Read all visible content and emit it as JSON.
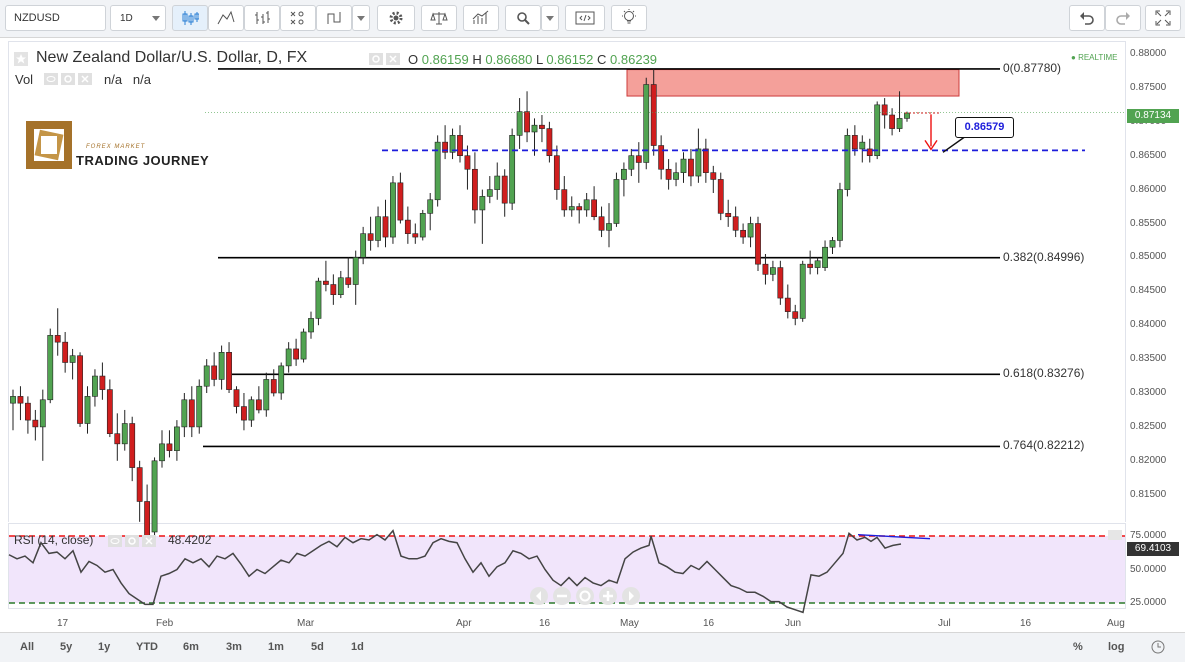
{
  "toolbar": {
    "symbol": "NZDUSD",
    "interval": "1D"
  },
  "legend": {
    "title": "New Zealand Dollar/U.S. Dollar, D, FX",
    "o_label": "O",
    "o_value": "0.86159",
    "h_label": "H",
    "h_value": "0.86680",
    "l_label": "L",
    "l_value": "0.86152",
    "c_label": "C",
    "c_value": "0.86239",
    "vol_label": "Vol",
    "vol_value1": "n/a",
    "vol_value2": "n/a",
    "realtime": "REALTIME"
  },
  "watermark": {
    "line1": "FOREX MARKET",
    "line2": "TRADING JOURNEY"
  },
  "annotation": {
    "level_label": "0.86579"
  },
  "rsi": {
    "label": "RSI (14, close)",
    "value": "48.4202",
    "current_badge": "69.4103",
    "ticks": [
      "75.0000",
      "50.0000",
      "25.0000"
    ]
  },
  "current_price": "0.87134",
  "bottom_bar": {
    "ranges": [
      "All",
      "5y",
      "1y",
      "YTD",
      "6m",
      "3m",
      "1m",
      "5d",
      "1d"
    ],
    "percent": "%",
    "log": "log"
  },
  "colors": {
    "up": "#51a351",
    "down": "#d01e1e",
    "fib": "#000000",
    "dashed_level": "#1d1ddb",
    "resistance_zone": "#f4a09a",
    "rsi_band": "#f1e5fb",
    "rsi_line": "#444444"
  },
  "chart_data": {
    "type": "candlestick",
    "title": "New Zealand Dollar/U.S. Dollar, D, FX",
    "ylim": [
      0.8075,
      0.882
    ],
    "y_ticks": [
      "0.88000",
      "0.87500",
      "0.87000",
      "0.86500",
      "0.86000",
      "0.85500",
      "0.85000",
      "0.84500",
      "0.84000",
      "0.83500",
      "0.83000",
      "0.82500",
      "0.82000",
      "0.81500"
    ],
    "x_ticks": [
      "17",
      "Feb",
      "Mar",
      "Apr",
      "16",
      "May",
      "16",
      "Jun",
      "Jul",
      "16",
      "Aug"
    ],
    "fib_levels": [
      {
        "label": "0(0.87780)",
        "value": 0.8778
      },
      {
        "label": "0.382(0.84996)",
        "value": 0.84996
      },
      {
        "label": "0.618(0.83276)",
        "value": 0.83276
      },
      {
        "label": "0.764(0.82212)",
        "value": 0.82212
      }
    ],
    "support_level": 0.86579,
    "resistance_zone": [
      0.8738,
      0.8777
    ],
    "candles": [
      {
        "o": 0.8285,
        "h": 0.8305,
        "l": 0.8245,
        "c": 0.8295
      },
      {
        "o": 0.8295,
        "h": 0.831,
        "l": 0.826,
        "c": 0.8285
      },
      {
        "o": 0.8285,
        "h": 0.8295,
        "l": 0.824,
        "c": 0.826
      },
      {
        "o": 0.826,
        "h": 0.8275,
        "l": 0.823,
        "c": 0.825
      },
      {
        "o": 0.825,
        "h": 0.8305,
        "l": 0.82,
        "c": 0.829
      },
      {
        "o": 0.829,
        "h": 0.8395,
        "l": 0.8285,
        "c": 0.8385
      },
      {
        "o": 0.8385,
        "h": 0.8425,
        "l": 0.8355,
        "c": 0.8375
      },
      {
        "o": 0.8375,
        "h": 0.839,
        "l": 0.833,
        "c": 0.8345
      },
      {
        "o": 0.8345,
        "h": 0.8365,
        "l": 0.832,
        "c": 0.8355
      },
      {
        "o": 0.8355,
        "h": 0.836,
        "l": 0.825,
        "c": 0.8255
      },
      {
        "o": 0.8255,
        "h": 0.831,
        "l": 0.824,
        "c": 0.8295
      },
      {
        "o": 0.8295,
        "h": 0.8335,
        "l": 0.828,
        "c": 0.8325
      },
      {
        "o": 0.8325,
        "h": 0.8345,
        "l": 0.829,
        "c": 0.8305
      },
      {
        "o": 0.8305,
        "h": 0.832,
        "l": 0.8235,
        "c": 0.824
      },
      {
        "o": 0.824,
        "h": 0.827,
        "l": 0.82,
        "c": 0.8225
      },
      {
        "o": 0.8225,
        "h": 0.8275,
        "l": 0.8215,
        "c": 0.8255
      },
      {
        "o": 0.8255,
        "h": 0.8265,
        "l": 0.817,
        "c": 0.819
      },
      {
        "o": 0.819,
        "h": 0.82,
        "l": 0.811,
        "c": 0.814
      },
      {
        "o": 0.814,
        "h": 0.8165,
        "l": 0.807,
        "c": 0.809
      },
      {
        "o": 0.8095,
        "h": 0.8205,
        "l": 0.8085,
        "c": 0.82
      },
      {
        "o": 0.82,
        "h": 0.8245,
        "l": 0.819,
        "c": 0.8225
      },
      {
        "o": 0.8225,
        "h": 0.8245,
        "l": 0.8205,
        "c": 0.8215
      },
      {
        "o": 0.8215,
        "h": 0.826,
        "l": 0.82,
        "c": 0.825
      },
      {
        "o": 0.825,
        "h": 0.83,
        "l": 0.8235,
        "c": 0.829
      },
      {
        "o": 0.829,
        "h": 0.831,
        "l": 0.8235,
        "c": 0.825
      },
      {
        "o": 0.825,
        "h": 0.832,
        "l": 0.824,
        "c": 0.831
      },
      {
        "o": 0.831,
        "h": 0.835,
        "l": 0.83,
        "c": 0.834
      },
      {
        "o": 0.834,
        "h": 0.836,
        "l": 0.831,
        "c": 0.832
      },
      {
        "o": 0.832,
        "h": 0.837,
        "l": 0.8305,
        "c": 0.836
      },
      {
        "o": 0.836,
        "h": 0.8375,
        "l": 0.83,
        "c": 0.8305
      },
      {
        "o": 0.8305,
        "h": 0.831,
        "l": 0.827,
        "c": 0.828
      },
      {
        "o": 0.828,
        "h": 0.83,
        "l": 0.8245,
        "c": 0.826
      },
      {
        "o": 0.826,
        "h": 0.8295,
        "l": 0.825,
        "c": 0.829
      },
      {
        "o": 0.829,
        "h": 0.831,
        "l": 0.827,
        "c": 0.8275
      },
      {
        "o": 0.8275,
        "h": 0.833,
        "l": 0.8265,
        "c": 0.832
      },
      {
        "o": 0.832,
        "h": 0.8335,
        "l": 0.8295,
        "c": 0.83
      },
      {
        "o": 0.83,
        "h": 0.8345,
        "l": 0.829,
        "c": 0.834
      },
      {
        "o": 0.834,
        "h": 0.8375,
        "l": 0.833,
        "c": 0.8365
      },
      {
        "o": 0.8365,
        "h": 0.838,
        "l": 0.834,
        "c": 0.835
      },
      {
        "o": 0.835,
        "h": 0.8395,
        "l": 0.8345,
        "c": 0.839
      },
      {
        "o": 0.839,
        "h": 0.842,
        "l": 0.838,
        "c": 0.841
      },
      {
        "o": 0.841,
        "h": 0.847,
        "l": 0.84,
        "c": 0.8465
      },
      {
        "o": 0.8465,
        "h": 0.8495,
        "l": 0.845,
        "c": 0.846
      },
      {
        "o": 0.846,
        "h": 0.8475,
        "l": 0.843,
        "c": 0.8445
      },
      {
        "o": 0.8445,
        "h": 0.848,
        "l": 0.844,
        "c": 0.847
      },
      {
        "o": 0.847,
        "h": 0.85,
        "l": 0.8455,
        "c": 0.846
      },
      {
        "o": 0.846,
        "h": 0.851,
        "l": 0.843,
        "c": 0.85
      },
      {
        "o": 0.85,
        "h": 0.8545,
        "l": 0.849,
        "c": 0.8535
      },
      {
        "o": 0.8535,
        "h": 0.856,
        "l": 0.851,
        "c": 0.8525
      },
      {
        "o": 0.8525,
        "h": 0.8575,
        "l": 0.8515,
        "c": 0.856
      },
      {
        "o": 0.856,
        "h": 0.8585,
        "l": 0.8515,
        "c": 0.853
      },
      {
        "o": 0.853,
        "h": 0.862,
        "l": 0.852,
        "c": 0.861
      },
      {
        "o": 0.861,
        "h": 0.8625,
        "l": 0.855,
        "c": 0.8555
      },
      {
        "o": 0.8555,
        "h": 0.8575,
        "l": 0.852,
        "c": 0.8535
      },
      {
        "o": 0.8535,
        "h": 0.855,
        "l": 0.852,
        "c": 0.853
      },
      {
        "o": 0.853,
        "h": 0.857,
        "l": 0.8525,
        "c": 0.8565
      },
      {
        "o": 0.8565,
        "h": 0.8595,
        "l": 0.854,
        "c": 0.8585
      },
      {
        "o": 0.8585,
        "h": 0.868,
        "l": 0.8575,
        "c": 0.867
      },
      {
        "o": 0.867,
        "h": 0.8695,
        "l": 0.8645,
        "c": 0.8655
      },
      {
        "o": 0.8655,
        "h": 0.869,
        "l": 0.8645,
        "c": 0.868
      },
      {
        "o": 0.868,
        "h": 0.8695,
        "l": 0.864,
        "c": 0.865
      },
      {
        "o": 0.865,
        "h": 0.8665,
        "l": 0.86,
        "c": 0.863
      },
      {
        "o": 0.863,
        "h": 0.8655,
        "l": 0.855,
        "c": 0.857
      },
      {
        "o": 0.857,
        "h": 0.86,
        "l": 0.852,
        "c": 0.859
      },
      {
        "o": 0.859,
        "h": 0.862,
        "l": 0.858,
        "c": 0.86
      },
      {
        "o": 0.86,
        "h": 0.864,
        "l": 0.8585,
        "c": 0.862
      },
      {
        "o": 0.862,
        "h": 0.863,
        "l": 0.856,
        "c": 0.858
      },
      {
        "o": 0.858,
        "h": 0.869,
        "l": 0.857,
        "c": 0.868
      },
      {
        "o": 0.868,
        "h": 0.8735,
        "l": 0.866,
        "c": 0.8715
      },
      {
        "o": 0.8715,
        "h": 0.8745,
        "l": 0.867,
        "c": 0.8685
      },
      {
        "o": 0.8685,
        "h": 0.8705,
        "l": 0.865,
        "c": 0.8695
      },
      {
        "o": 0.8695,
        "h": 0.871,
        "l": 0.867,
        "c": 0.869
      },
      {
        "o": 0.869,
        "h": 0.87,
        "l": 0.864,
        "c": 0.865
      },
      {
        "o": 0.865,
        "h": 0.8665,
        "l": 0.8585,
        "c": 0.86
      },
      {
        "o": 0.86,
        "h": 0.862,
        "l": 0.856,
        "c": 0.857
      },
      {
        "o": 0.857,
        "h": 0.859,
        "l": 0.856,
        "c": 0.8575
      },
      {
        "o": 0.8575,
        "h": 0.858,
        "l": 0.855,
        "c": 0.857
      },
      {
        "o": 0.857,
        "h": 0.8595,
        "l": 0.856,
        "c": 0.8585
      },
      {
        "o": 0.8585,
        "h": 0.8605,
        "l": 0.8555,
        "c": 0.856
      },
      {
        "o": 0.856,
        "h": 0.8575,
        "l": 0.853,
        "c": 0.854
      },
      {
        "o": 0.854,
        "h": 0.858,
        "l": 0.8515,
        "c": 0.855
      },
      {
        "o": 0.855,
        "h": 0.8625,
        "l": 0.8545,
        "c": 0.8615
      },
      {
        "o": 0.8615,
        "h": 0.864,
        "l": 0.859,
        "c": 0.863
      },
      {
        "o": 0.863,
        "h": 0.866,
        "l": 0.862,
        "c": 0.865
      },
      {
        "o": 0.865,
        "h": 0.867,
        "l": 0.861,
        "c": 0.864
      },
      {
        "o": 0.864,
        "h": 0.8765,
        "l": 0.863,
        "c": 0.8755
      },
      {
        "o": 0.8755,
        "h": 0.8778,
        "l": 0.865,
        "c": 0.8665
      },
      {
        "o": 0.8665,
        "h": 0.868,
        "l": 0.8615,
        "c": 0.863
      },
      {
        "o": 0.863,
        "h": 0.8645,
        "l": 0.86,
        "c": 0.8615
      },
      {
        "o": 0.8615,
        "h": 0.864,
        "l": 0.8605,
        "c": 0.8625
      },
      {
        "o": 0.8625,
        "h": 0.8655,
        "l": 0.861,
        "c": 0.8645
      },
      {
        "o": 0.8645,
        "h": 0.866,
        "l": 0.8605,
        "c": 0.862
      },
      {
        "o": 0.862,
        "h": 0.869,
        "l": 0.861,
        "c": 0.866
      },
      {
        "o": 0.866,
        "h": 0.8675,
        "l": 0.861,
        "c": 0.8625
      },
      {
        "o": 0.8625,
        "h": 0.8635,
        "l": 0.8595,
        "c": 0.8615
      },
      {
        "o": 0.8615,
        "h": 0.8625,
        "l": 0.8555,
        "c": 0.8565
      },
      {
        "o": 0.8565,
        "h": 0.8585,
        "l": 0.8545,
        "c": 0.856
      },
      {
        "o": 0.856,
        "h": 0.8575,
        "l": 0.853,
        "c": 0.854
      },
      {
        "o": 0.854,
        "h": 0.855,
        "l": 0.852,
        "c": 0.853
      },
      {
        "o": 0.853,
        "h": 0.856,
        "l": 0.8515,
        "c": 0.855
      },
      {
        "o": 0.855,
        "h": 0.856,
        "l": 0.848,
        "c": 0.849
      },
      {
        "o": 0.849,
        "h": 0.8505,
        "l": 0.846,
        "c": 0.8475
      },
      {
        "o": 0.8475,
        "h": 0.8495,
        "l": 0.8465,
        "c": 0.8485
      },
      {
        "o": 0.8485,
        "h": 0.8495,
        "l": 0.843,
        "c": 0.844
      },
      {
        "o": 0.844,
        "h": 0.846,
        "l": 0.841,
        "c": 0.842
      },
      {
        "o": 0.842,
        "h": 0.843,
        "l": 0.84,
        "c": 0.841
      },
      {
        "o": 0.841,
        "h": 0.8495,
        "l": 0.8405,
        "c": 0.849
      },
      {
        "o": 0.849,
        "h": 0.851,
        "l": 0.8475,
        "c": 0.8485
      },
      {
        "o": 0.8485,
        "h": 0.85,
        "l": 0.8475,
        "c": 0.8495
      },
      {
        "o": 0.8485,
        "h": 0.8525,
        "l": 0.848,
        "c": 0.8515
      },
      {
        "o": 0.8515,
        "h": 0.853,
        "l": 0.8505,
        "c": 0.8525
      },
      {
        "o": 0.8525,
        "h": 0.861,
        "l": 0.8515,
        "c": 0.86
      },
      {
        "o": 0.86,
        "h": 0.869,
        "l": 0.859,
        "c": 0.868
      },
      {
        "o": 0.868,
        "h": 0.8695,
        "l": 0.865,
        "c": 0.866
      },
      {
        "o": 0.866,
        "h": 0.868,
        "l": 0.864,
        "c": 0.867
      },
      {
        "o": 0.866,
        "h": 0.8675,
        "l": 0.864,
        "c": 0.865
      },
      {
        "o": 0.865,
        "h": 0.873,
        "l": 0.8645,
        "c": 0.8725
      },
      {
        "o": 0.8725,
        "h": 0.8735,
        "l": 0.869,
        "c": 0.871
      },
      {
        "o": 0.871,
        "h": 0.872,
        "l": 0.868,
        "c": 0.869
      },
      {
        "o": 0.869,
        "h": 0.8745,
        "l": 0.8685,
        "c": 0.8705
      },
      {
        "o": 0.8705,
        "h": 0.8715,
        "l": 0.87,
        "c": 0.8713
      }
    ],
    "rsi": [
      {
        "x": 0,
        "v": 61
      },
      {
        "x": 8,
        "v": 58
      },
      {
        "x": 16,
        "v": 60
      },
      {
        "x": 24,
        "v": 55
      },
      {
        "x": 32,
        "v": 70
      },
      {
        "x": 40,
        "v": 62
      },
      {
        "x": 48,
        "v": 63
      },
      {
        "x": 56,
        "v": 58
      },
      {
        "x": 64,
        "v": 64
      },
      {
        "x": 72,
        "v": 48
      },
      {
        "x": 80,
        "v": 56
      },
      {
        "x": 88,
        "v": 53
      },
      {
        "x": 96,
        "v": 48
      },
      {
        "x": 104,
        "v": 50
      },
      {
        "x": 112,
        "v": 40
      },
      {
        "x": 120,
        "v": 32
      },
      {
        "x": 128,
        "v": 28
      },
      {
        "x": 136,
        "v": 24
      },
      {
        "x": 144,
        "v": 24
      },
      {
        "x": 152,
        "v": 45
      },
      {
        "x": 160,
        "v": 47
      },
      {
        "x": 168,
        "v": 50
      },
      {
        "x": 176,
        "v": 58
      },
      {
        "x": 184,
        "v": 55
      },
      {
        "x": 192,
        "v": 58
      },
      {
        "x": 200,
        "v": 52
      },
      {
        "x": 208,
        "v": 60
      },
      {
        "x": 216,
        "v": 58
      },
      {
        "x": 224,
        "v": 62
      },
      {
        "x": 232,
        "v": 54
      },
      {
        "x": 240,
        "v": 45
      },
      {
        "x": 248,
        "v": 50
      },
      {
        "x": 256,
        "v": 47
      },
      {
        "x": 264,
        "v": 52
      },
      {
        "x": 272,
        "v": 57
      },
      {
        "x": 280,
        "v": 55
      },
      {
        "x": 288,
        "v": 62
      },
      {
        "x": 296,
        "v": 60
      },
      {
        "x": 304,
        "v": 64
      },
      {
        "x": 312,
        "v": 68
      },
      {
        "x": 320,
        "v": 71
      },
      {
        "x": 328,
        "v": 67
      },
      {
        "x": 336,
        "v": 74
      },
      {
        "x": 344,
        "v": 70
      },
      {
        "x": 352,
        "v": 73
      },
      {
        "x": 360,
        "v": 72
      },
      {
        "x": 368,
        "v": 76
      },
      {
        "x": 376,
        "v": 72
      },
      {
        "x": 384,
        "v": 79
      },
      {
        "x": 392,
        "v": 60
      },
      {
        "x": 400,
        "v": 58
      },
      {
        "x": 408,
        "v": 58
      },
      {
        "x": 416,
        "v": 60
      },
      {
        "x": 424,
        "v": 70
      },
      {
        "x": 432,
        "v": 73
      },
      {
        "x": 440,
        "v": 71
      },
      {
        "x": 448,
        "v": 70
      },
      {
        "x": 456,
        "v": 58
      },
      {
        "x": 464,
        "v": 48
      },
      {
        "x": 472,
        "v": 55
      },
      {
        "x": 480,
        "v": 45
      },
      {
        "x": 488,
        "v": 52
      },
      {
        "x": 496,
        "v": 55
      },
      {
        "x": 504,
        "v": 64
      },
      {
        "x": 512,
        "v": 62
      },
      {
        "x": 520,
        "v": 58
      },
      {
        "x": 528,
        "v": 60
      },
      {
        "x": 536,
        "v": 50
      },
      {
        "x": 544,
        "v": 42
      },
      {
        "x": 552,
        "v": 38
      },
      {
        "x": 560,
        "v": 44
      },
      {
        "x": 568,
        "v": 38
      },
      {
        "x": 576,
        "v": 44
      },
      {
        "x": 584,
        "v": 40
      },
      {
        "x": 592,
        "v": 38
      },
      {
        "x": 600,
        "v": 42
      },
      {
        "x": 608,
        "v": 40
      },
      {
        "x": 616,
        "v": 58
      },
      {
        "x": 624,
        "v": 63
      },
      {
        "x": 632,
        "v": 66
      },
      {
        "x": 640,
        "v": 68
      },
      {
        "x": 642,
        "v": 75
      },
      {
        "x": 650,
        "v": 55
      },
      {
        "x": 658,
        "v": 52
      },
      {
        "x": 666,
        "v": 48
      },
      {
        "x": 674,
        "v": 47
      },
      {
        "x": 682,
        "v": 53
      },
      {
        "x": 690,
        "v": 50
      },
      {
        "x": 698,
        "v": 56
      },
      {
        "x": 706,
        "v": 50
      },
      {
        "x": 714,
        "v": 44
      },
      {
        "x": 722,
        "v": 38
      },
      {
        "x": 730,
        "v": 36
      },
      {
        "x": 738,
        "v": 33
      },
      {
        "x": 746,
        "v": 33
      },
      {
        "x": 754,
        "v": 30
      },
      {
        "x": 762,
        "v": 26
      },
      {
        "x": 770,
        "v": 26
      },
      {
        "x": 778,
        "v": 22
      },
      {
        "x": 786,
        "v": 20
      },
      {
        "x": 794,
        "v": 18
      },
      {
        "x": 802,
        "v": 46
      },
      {
        "x": 810,
        "v": 45
      },
      {
        "x": 818,
        "v": 48
      },
      {
        "x": 826,
        "v": 55
      },
      {
        "x": 834,
        "v": 62
      },
      {
        "x": 840,
        "v": 77
      },
      {
        "x": 848,
        "v": 72
      },
      {
        "x": 856,
        "v": 74
      },
      {
        "x": 862,
        "v": 71
      },
      {
        "x": 868,
        "v": 74
      },
      {
        "x": 876,
        "v": 66
      },
      {
        "x": 884,
        "v": 68
      },
      {
        "x": 892,
        "v": 69
      }
    ]
  }
}
